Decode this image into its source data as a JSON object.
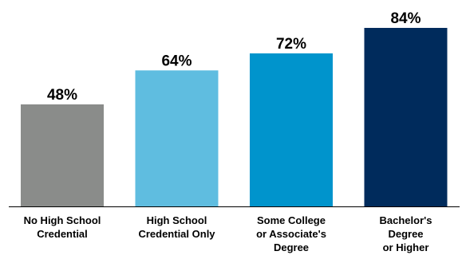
{
  "chart_data": {
    "type": "bar",
    "categories": [
      [
        "No High School",
        "Credential"
      ],
      [
        "High School",
        "Credential Only"
      ],
      [
        "Some College",
        "or Associate's",
        "Degree"
      ],
      [
        "Bachelor's",
        "Degree",
        "or Higher"
      ]
    ],
    "values": [
      48,
      64,
      72,
      84
    ],
    "value_labels": [
      "48%",
      "64%",
      "72%",
      "84%"
    ],
    "colors": [
      "#8a8c8a",
      "#5fbde0",
      "#0094cc",
      "#002b5c"
    ],
    "axis_color": "#000000",
    "ylim": [
      0,
      100
    ],
    "grid": false,
    "title": "",
    "xlabel": "",
    "ylabel": ""
  }
}
